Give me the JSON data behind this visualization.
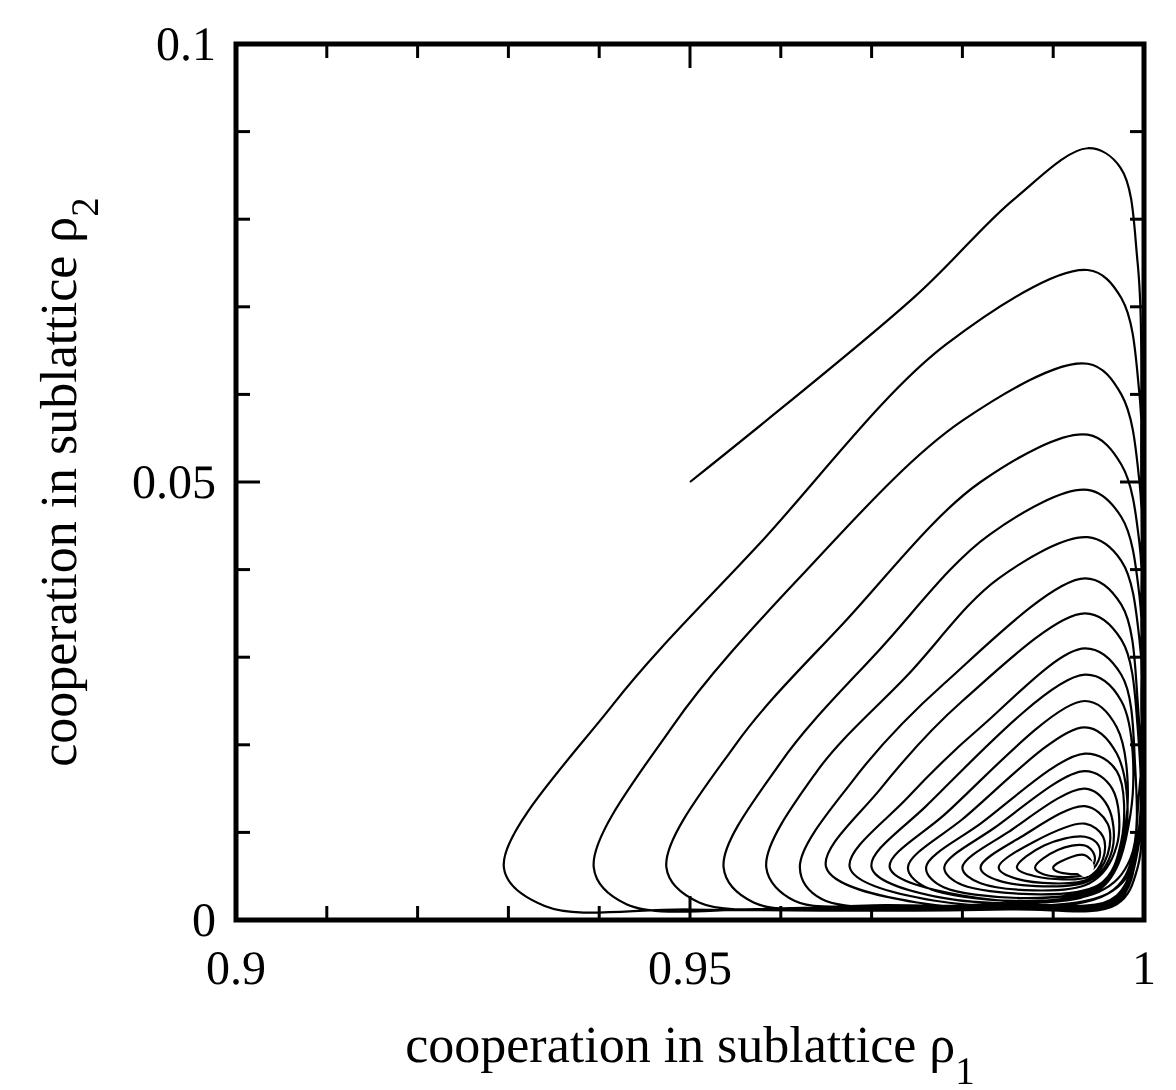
{
  "chart_data": {
    "type": "line",
    "xlabel": "cooperation in sublattice ρ$_{1}$",
    "ylabel": "cooperation in sublattice ρ$_{2}$",
    "xlim": [
      0.9,
      1
    ],
    "ylim": [
      0,
      0.1
    ],
    "xticks": [
      0.9,
      {
        "value": 0.91,
        "label": null
      },
      {
        "value": 0.92,
        "label": null
      },
      {
        "value": 0.93,
        "label": null
      },
      {
        "value": 0.94,
        "label": null
      },
      0.95,
      {
        "value": 0.96,
        "label": null
      },
      {
        "value": 0.97,
        "label": null
      },
      {
        "value": 0.98,
        "label": null
      },
      {
        "value": 0.99,
        "label": null
      },
      1
    ],
    "yticks": [
      0,
      {
        "value": 0.01,
        "label": null
      },
      {
        "value": 0.02,
        "label": null
      },
      {
        "value": 0.03,
        "label": null
      },
      {
        "value": 0.04,
        "label": null
      },
      0.05,
      {
        "value": 0.06,
        "label": null
      },
      {
        "value": 0.07,
        "label": null
      },
      {
        "value": 0.08,
        "label": null
      },
      {
        "value": 0.09,
        "label": null
      },
      0.1
    ],
    "series": [
      {
        "color": "#000000",
        "marker": "none",
        "line_style": "solid",
        "x": [
          0.95,
          0.9747,
          0.9857,
          0.9938,
          0.9974,
          0.9993,
          0.9997,
          0.9997,
          0.9993,
          0.997,
          0.985,
          0.95,
          0.934,
          0.9295,
          0.9416,
          0.9577,
          0.9782,
          0.9938,
          0.9975,
          0.9995,
          0.9997,
          0.9995,
          0.997,
          0.985,
          0.96,
          0.943,
          0.9394,
          0.948,
          0.962,
          0.98,
          0.9938,
          0.9975,
          0.9995,
          0.9997,
          0.9995,
          0.997,
          0.985,
          0.965,
          0.951,
          0.9474,
          0.955,
          0.967,
          0.982,
          0.9938,
          0.9975,
          0.9995,
          0.9997,
          0.9995,
          0.997,
          0.985,
          0.97,
          0.957,
          0.9537,
          0.96,
          0.971,
          0.983,
          0.9938,
          0.9975,
          0.9995,
          0.9997,
          0.9993,
          0.997,
          0.985,
          0.972,
          0.9615,
          0.9584,
          0.964,
          0.974,
          0.984,
          0.9938,
          0.9975,
          0.9995,
          0.9995,
          0.997,
          0.985,
          0.9645,
          0.9621,
          0.968,
          0.978,
          0.9935,
          0.9975,
          0.9993,
          0.999,
          0.996,
          0.975,
          0.965,
          0.971,
          0.98,
          0.9935,
          0.9975,
          0.9993,
          0.999,
          0.996,
          0.977,
          0.9676,
          0.974,
          0.982,
          0.9935,
          0.9975,
          0.999,
          0.9985,
          0.995,
          0.978,
          0.97,
          0.976,
          0.9935,
          0.9975,
          0.9985,
          0.995,
          0.98,
          0.972,
          0.978,
          0.9935,
          0.997,
          0.998,
          0.995,
          0.9765,
          0.974,
          0.98,
          0.9935,
          0.997,
          0.998,
          0.995,
          0.978,
          0.976,
          0.982,
          0.9935,
          0.997,
          0.9975,
          0.995,
          0.98,
          0.978,
          0.9835,
          0.9935,
          0.9965,
          0.997,
          0.994,
          0.982,
          0.98,
          0.985,
          0.9935,
          0.996,
          0.9965,
          0.994,
          0.984,
          0.982,
          0.9865,
          0.9935,
          0.996,
          0.996,
          0.994,
          0.986,
          0.984,
          0.988,
          0.9935,
          0.9955,
          0.9955,
          0.994,
          0.988,
          0.986,
          0.989,
          0.9935,
          0.995,
          0.995,
          0.9935,
          0.989,
          0.988,
          0.9905,
          0.9935,
          0.9945,
          0.9945,
          0.9935,
          0.9905,
          0.99,
          0.992,
          0.9935,
          0.9942,
          0.9935
        ],
        "values": [
          0.05,
          0.0711,
          0.0823,
          0.0881,
          0.0859,
          0.075,
          0.05,
          0.02,
          0.006,
          0.0018,
          0.0012,
          0.0012,
          0.0016,
          0.006,
          0.0247,
          0.043,
          0.0657,
          0.0742,
          0.071,
          0.06,
          0.035,
          0.01,
          0.002,
          0.0013,
          0.0013,
          0.0018,
          0.006,
          0.022,
          0.039,
          0.057,
          0.0635,
          0.06,
          0.05,
          0.03,
          0.01,
          0.0022,
          0.0014,
          0.0014,
          0.002,
          0.006,
          0.02,
          0.034,
          0.05,
          0.0554,
          0.052,
          0.043,
          0.025,
          0.009,
          0.0024,
          0.0015,
          0.0015,
          0.002,
          0.006,
          0.018,
          0.031,
          0.044,
          0.0491,
          0.046,
          0.037,
          0.02,
          0.008,
          0.0026,
          0.0017,
          0.0017,
          0.0022,
          0.006,
          0.017,
          0.028,
          0.039,
          0.0437,
          0.041,
          0.032,
          0.015,
          0.0028,
          0.0019,
          0.0024,
          0.006,
          0.016,
          0.027,
          0.039,
          0.036,
          0.025,
          0.008,
          0.003,
          0.002,
          0.006,
          0.015,
          0.025,
          0.035,
          0.032,
          0.022,
          0.007,
          0.003,
          0.0022,
          0.006,
          0.014,
          0.022,
          0.031,
          0.028,
          0.018,
          0.007,
          0.0032,
          0.0025,
          0.006,
          0.013,
          0.028,
          0.025,
          0.012,
          0.0034,
          0.0028,
          0.006,
          0.012,
          0.025,
          0.022,
          0.011,
          0.0036,
          0.0035,
          0.006,
          0.0115,
          0.022,
          0.019,
          0.01,
          0.0038,
          0.0037,
          0.006,
          0.011,
          0.019,
          0.017,
          0.009,
          0.004,
          0.004,
          0.006,
          0.0105,
          0.017,
          0.015,
          0.0085,
          0.0042,
          0.0042,
          0.006,
          0.01,
          0.015,
          0.013,
          0.008,
          0.0045,
          0.0045,
          0.006,
          0.0095,
          0.013,
          0.011,
          0.0075,
          0.0047,
          0.0047,
          0.006,
          0.009,
          0.011,
          0.0095,
          0.007,
          0.005,
          0.005,
          0.006,
          0.0085,
          0.0095,
          0.0085,
          0.0068,
          0.0052,
          0.0052,
          0.006,
          0.008,
          0.0085,
          0.0075,
          0.0065,
          0.0054,
          0.0055,
          0.006,
          0.0072,
          0.0074,
          0.0066,
          0.0058
        ]
      },
      {
        "type": "scatter",
        "color": "#ffffff",
        "marker": "circle",
        "x": [
          0.9935
        ],
        "values": [
          0.006
        ]
      }
    ]
  }
}
